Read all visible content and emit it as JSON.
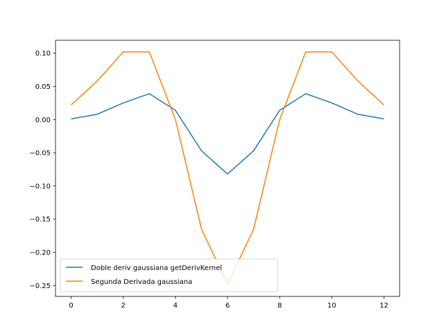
{
  "chart_data": {
    "type": "line",
    "title": "",
    "xlabel": "",
    "ylabel": "",
    "xlim": [
      -0.6,
      12.6
    ],
    "ylim": [
      -0.2665,
      0.1195
    ],
    "x_ticks": [
      0,
      2,
      4,
      6,
      8,
      10,
      12
    ],
    "x_tick_labels": [
      "0",
      "2",
      "4",
      "6",
      "8",
      "10",
      "12"
    ],
    "y_ticks": [
      0.1,
      0.05,
      0.0,
      -0.05,
      -0.1,
      -0.15,
      -0.2,
      -0.25
    ],
    "y_tick_labels": [
      "0.10",
      "0.05",
      "0.00",
      "−0.05",
      "−0.10",
      "−0.15",
      "−0.20",
      "−0.25"
    ],
    "grid": false,
    "legend_position": "lower-left",
    "x": [
      0,
      1,
      2,
      3,
      4,
      5,
      6,
      7,
      8,
      9,
      10,
      11,
      12
    ],
    "series": [
      {
        "name": "Doble deriv gaussiana getDerivKernel",
        "color": "#1f77b4",
        "values": [
          0.001,
          0.008,
          0.025,
          0.039,
          0.014,
          -0.047,
          -0.082,
          -0.047,
          0.014,
          0.039,
          0.025,
          0.008,
          0.001
        ]
      },
      {
        "name": "Segunda Derivada gaussiana",
        "color": "#ff7f0e",
        "values": [
          0.022,
          0.058,
          0.102,
          0.102,
          0.0,
          -0.165,
          -0.248,
          -0.165,
          0.0,
          0.102,
          0.102,
          0.058,
          0.022
        ]
      }
    ]
  }
}
